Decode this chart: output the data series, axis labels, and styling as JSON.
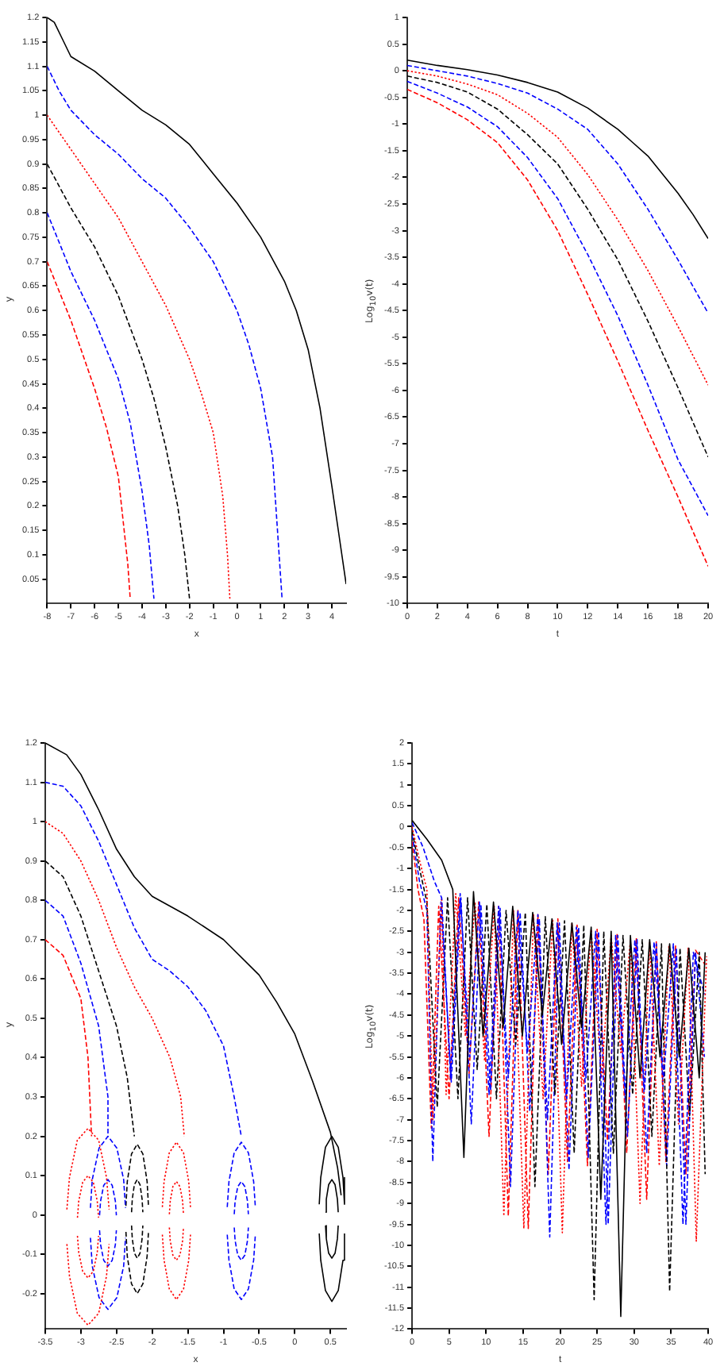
{
  "chart_data": [
    {
      "type": "line",
      "xlabel": "x",
      "ylabel": "y",
      "xlim": [
        -8,
        4.6
      ],
      "ylim": [
        0,
        1.2
      ],
      "xticks": [
        -8,
        -7,
        -6,
        -5,
        -4,
        -3,
        -2,
        -1,
        0,
        1,
        2,
        3,
        4
      ],
      "yticks": [
        0.05,
        0.1,
        0.15,
        0.2,
        0.25,
        0.3,
        0.35,
        0.4,
        0.45,
        0.5,
        0.55,
        0.6,
        0.65,
        0.7,
        0.75,
        0.8,
        0.85,
        0.9,
        0.95,
        1,
        1.05,
        1.1,
        1.15,
        1.2
      ],
      "series": [
        {
          "color": "#000000",
          "line_style": "solid",
          "x": [
            -8,
            -7.7,
            -7.3,
            -7,
            -6,
            -5,
            -4,
            -3,
            -2,
            -1,
            0,
            1,
            2,
            2.5,
            3,
            3.5,
            4,
            4.3,
            4.6
          ],
          "values": [
            1.2,
            1.19,
            1.15,
            1.12,
            1.09,
            1.05,
            1.01,
            0.98,
            0.94,
            0.88,
            0.82,
            0.75,
            0.66,
            0.6,
            0.52,
            0.4,
            0.24,
            0.14,
            0.04
          ]
        },
        {
          "color": "#0000ff",
          "line_style": "dashed",
          "x": [
            -8,
            -7.5,
            -7,
            -6,
            -5,
            -4,
            -3,
            -2,
            -1,
            0,
            0.5,
            1,
            1.5,
            1.9
          ],
          "values": [
            1.1,
            1.05,
            1.01,
            0.96,
            0.92,
            0.87,
            0.83,
            0.77,
            0.7,
            0.6,
            0.53,
            0.44,
            0.3,
            0.01
          ]
        },
        {
          "color": "#ff0000",
          "line_style": "dotted",
          "x": [
            -8,
            -7,
            -6,
            -5,
            -4,
            -3,
            -2,
            -1.5,
            -1,
            -0.6,
            -0.4,
            -0.3
          ],
          "values": [
            1,
            0.93,
            0.86,
            0.79,
            0.7,
            0.61,
            0.5,
            0.43,
            0.35,
            0.22,
            0.1,
            0.01
          ]
        },
        {
          "color": "#000000",
          "line_style": "dashed",
          "x": [
            -8,
            -7,
            -6,
            -5,
            -4,
            -3.5,
            -3,
            -2.5,
            -2.2,
            -2
          ],
          "values": [
            0.9,
            0.81,
            0.73,
            0.63,
            0.5,
            0.42,
            0.32,
            0.2,
            0.1,
            0.01
          ]
        },
        {
          "color": "#0000ff",
          "line_style": "dashed",
          "x": [
            -8,
            -7.5,
            -7,
            -6,
            -5,
            -4.5,
            -4,
            -3.7,
            -3.5
          ],
          "values": [
            0.8,
            0.74,
            0.68,
            0.58,
            0.46,
            0.37,
            0.23,
            0.12,
            0.01
          ]
        },
        {
          "color": "#ff0000",
          "line_style": "dashed",
          "x": [
            -8,
            -7.5,
            -7,
            -6,
            -5.5,
            -5,
            -4.8,
            -4.6,
            -4.5
          ],
          "values": [
            0.7,
            0.64,
            0.58,
            0.44,
            0.36,
            0.26,
            0.17,
            0.08,
            0.01
          ]
        }
      ]
    },
    {
      "type": "line",
      "xlabel": "t",
      "ylabel": "Log$_{10}$v(t)",
      "xlim": [
        0,
        20
      ],
      "ylim": [
        -10,
        1
      ],
      "xticks": [
        0,
        2,
        4,
        6,
        8,
        10,
        12,
        14,
        16,
        18,
        20
      ],
      "yticks": [
        -10,
        -9.5,
        -9,
        -8.5,
        -8,
        -7.5,
        -7,
        -6.5,
        -6,
        -5.5,
        -5,
        -4.5,
        -4,
        -3.5,
        -3,
        -2.5,
        -2,
        -1.5,
        -1,
        -0.5,
        0,
        0.5,
        1
      ],
      "series": [
        {
          "color": "#000000",
          "line_style": "solid",
          "x": [
            0,
            2,
            4,
            6,
            8,
            10,
            12,
            14,
            15,
            16,
            17,
            18,
            19,
            20
          ],
          "values": [
            0.2,
            0.1,
            0.02,
            -0.08,
            -0.22,
            -0.4,
            -0.7,
            -1.1,
            -1.35,
            -1.6,
            -1.95,
            -2.3,
            -2.7,
            -3.15
          ]
        },
        {
          "color": "#0000ff",
          "line_style": "dashed",
          "x": [
            0,
            2,
            4,
            6,
            8,
            10,
            12,
            14,
            16,
            18,
            20
          ],
          "values": [
            0.1,
            0,
            -0.1,
            -0.24,
            -0.42,
            -0.72,
            -1.1,
            -1.75,
            -2.6,
            -3.55,
            -4.55
          ]
        },
        {
          "color": "#ff0000",
          "line_style": "dotted",
          "x": [
            0,
            2,
            4,
            6,
            8,
            10,
            12,
            14,
            16,
            18,
            20
          ],
          "values": [
            0,
            -0.1,
            -0.25,
            -0.45,
            -0.8,
            -1.25,
            -1.95,
            -2.8,
            -3.75,
            -4.8,
            -5.9
          ]
        },
        {
          "color": "#000000",
          "line_style": "dashed",
          "x": [
            0,
            2,
            4,
            6,
            8,
            10,
            12,
            14,
            16,
            18,
            20
          ],
          "values": [
            -0.1,
            -0.22,
            -0.4,
            -0.72,
            -1.2,
            -1.75,
            -2.6,
            -3.55,
            -4.7,
            -5.95,
            -7.25
          ]
        },
        {
          "color": "#0000ff",
          "line_style": "dashed",
          "x": [
            0,
            2,
            4,
            6,
            8,
            10,
            12,
            14,
            16,
            18,
            20
          ],
          "values": [
            -0.2,
            -0.42,
            -0.68,
            -1.05,
            -1.63,
            -2.4,
            -3.45,
            -4.6,
            -5.9,
            -7.3,
            -8.35
          ]
        },
        {
          "color": "#ff0000",
          "line_style": "dashed",
          "x": [
            0,
            2,
            4,
            6,
            8,
            10,
            12,
            14,
            16,
            18,
            20
          ],
          "values": [
            -0.35,
            -0.6,
            -0.92,
            -1.35,
            -2.05,
            -3,
            -4.2,
            -5.45,
            -6.75,
            -8,
            -9.3
          ]
        }
      ]
    },
    {
      "type": "line",
      "xlabel": "x",
      "ylabel": "y",
      "xlim": [
        -3.5,
        0.72
      ],
      "ylim": [
        -0.29,
        1.2
      ],
      "xticks": [
        -3.5,
        -3,
        -2.5,
        -2,
        -1.5,
        -1,
        -0.5,
        0,
        0.5
      ],
      "yticks": [
        -0.2,
        -0.1,
        0,
        0.1,
        0.2,
        0.3,
        0.4,
        0.5,
        0.6,
        0.7,
        0.8,
        0.9,
        1,
        1.1,
        1.2
      ],
      "series": [
        {
          "color": "#000000",
          "line_style": "solid",
          "x": [
            -3.5,
            -3.2,
            -3,
            -2.75,
            -2.5,
            -2.25,
            -2,
            -1.5,
            -1,
            -0.5,
            -0.25,
            0,
            0.25,
            0.5,
            0.6,
            0.65
          ],
          "values": [
            1.2,
            1.17,
            1.12,
            1.03,
            0.93,
            0.86,
            0.81,
            0.76,
            0.7,
            0.61,
            0.54,
            0.46,
            0.34,
            0.21,
            0.12,
            0.05
          ]
        },
        {
          "color": "#0000ff",
          "line_style": "dashed",
          "x": [
            -3.5,
            -3.25,
            -3,
            -2.75,
            -2.5,
            -2.25,
            -2,
            -1.75,
            -1.5,
            -1.25,
            -1,
            -0.85,
            -0.75
          ],
          "values": [
            1.1,
            1.09,
            1.04,
            0.95,
            0.84,
            0.73,
            0.65,
            0.62,
            0.58,
            0.52,
            0.43,
            0.3,
            0.2
          ]
        },
        {
          "color": "#ff0000",
          "line_style": "dotted",
          "x": [
            -3.5,
            -3.25,
            -3,
            -2.75,
            -2.5,
            -2.25,
            -2,
            -1.75,
            -1.6,
            -1.55
          ],
          "values": [
            1,
            0.97,
            0.9,
            0.8,
            0.68,
            0.58,
            0.5,
            0.4,
            0.3,
            0.2
          ]
        },
        {
          "color": "#000000",
          "line_style": "dashed",
          "x": [
            -3.5,
            -3.25,
            -3,
            -2.75,
            -2.5,
            -2.35,
            -2.25
          ],
          "values": [
            0.9,
            0.86,
            0.76,
            0.62,
            0.48,
            0.35,
            0.2
          ]
        },
        {
          "color": "#0000ff",
          "line_style": "dashed",
          "x": [
            -3.5,
            -3.25,
            -3,
            -2.75,
            -2.62,
            -2.62
          ],
          "values": [
            0.8,
            0.76,
            0.64,
            0.48,
            0.3,
            0.2
          ]
        },
        {
          "color": "#ff0000",
          "line_style": "dashed",
          "x": [
            -3.5,
            -3.25,
            -3,
            -2.9,
            -2.85
          ],
          "values": [
            0.7,
            0.66,
            0.55,
            0.4,
            0.2
          ]
        },
        {
          "color": "#ff0000",
          "line_style": "dotted",
          "x": [
            -3.196,
            -3.16,
            -3.05,
            -2.9,
            -2.75,
            -2.64,
            -2.604
          ],
          "values": [
            0.014,
            0.095,
            0.19,
            0.22,
            0.19,
            0.095,
            0.014
          ]
        },
        {
          "color": "#ff0000",
          "line_style": "dotted",
          "x": [
            -3.196,
            -3.16,
            -3.05,
            -2.9,
            -2.75,
            -2.64,
            -2.604
          ],
          "values": [
            -0.074,
            -0.155,
            -0.25,
            -0.28,
            -0.25,
            -0.155,
            -0.074
          ]
        },
        {
          "color": "#ff0000",
          "line_style": "dotted",
          "x": [
            -3.048,
            -3.03,
            -2.975,
            -2.9,
            -2.825,
            -2.77,
            -2.752
          ],
          "values": [
            -0.007,
            0.035,
            0.083,
            0.1,
            0.083,
            0.035,
            -0.007
          ]
        },
        {
          "color": "#ff0000",
          "line_style": "dotted",
          "x": [
            -3.048,
            -3.03,
            -2.975,
            -2.9,
            -2.825,
            -2.77,
            -2.752
          ],
          "values": [
            -0.053,
            -0.095,
            -0.143,
            -0.16,
            -0.143,
            -0.095,
            -0.053
          ]
        },
        {
          "color": "#0000ff",
          "line_style": "dashed",
          "x": [
            -2.866,
            -2.84,
            -2.745,
            -2.62,
            -2.495,
            -2.4,
            -2.374
          ],
          "values": [
            0.018,
            0.09,
            0.17,
            0.2,
            0.17,
            0.09,
            0.018
          ]
        },
        {
          "color": "#0000ff",
          "line_style": "dashed",
          "x": [
            -2.866,
            -2.84,
            -2.745,
            -2.62,
            -2.495,
            -2.4,
            -2.374
          ],
          "values": [
            -0.058,
            -0.13,
            -0.21,
            -0.24,
            -0.21,
            -0.13,
            -0.058
          ]
        },
        {
          "color": "#0000ff",
          "line_style": "dashed",
          "x": [
            -2.738,
            -2.724,
            -2.68,
            -2.62,
            -2.56,
            -2.516,
            -2.502
          ],
          "values": [
            -0.001,
            0.035,
            0.075,
            0.09,
            0.075,
            0.035,
            -0.001
          ]
        },
        {
          "color": "#0000ff",
          "line_style": "dashed",
          "x": [
            -2.738,
            -2.724,
            -2.68,
            -2.62,
            -2.56,
            -2.516,
            -2.502
          ],
          "values": [
            -0.039,
            -0.075,
            -0.115,
            -0.13,
            -0.115,
            -0.075,
            -0.039
          ]
        },
        {
          "color": "#000000",
          "line_style": "dashed",
          "x": [
            -2.368,
            -2.349,
            -2.29,
            -2.21,
            -2.13,
            -2.071,
            -2.052
          ],
          "values": [
            0.023,
            0.085,
            0.155,
            0.18,
            0.155,
            0.085,
            0.023
          ]
        },
        {
          "color": "#000000",
          "line_style": "dashed",
          "x": [
            -2.368,
            -2.349,
            -2.29,
            -2.21,
            -2.13,
            -2.071,
            -2.052
          ],
          "values": [
            -0.043,
            -0.105,
            -0.175,
            -0.2,
            -0.175,
            -0.105,
            -0.043
          ]
        },
        {
          "color": "#000000",
          "line_style": "dashed",
          "x": [
            -2.289,
            -2.279,
            -2.25,
            -2.21,
            -2.17,
            -2.141,
            -2.131
          ],
          "values": [
            0.007,
            0.04,
            0.077,
            0.09,
            0.077,
            0.04,
            0.007
          ]
        },
        {
          "color": "#000000",
          "line_style": "dashed",
          "x": [
            -2.289,
            -2.279,
            -2.25,
            -2.21,
            -2.17,
            -2.141,
            -2.131
          ],
          "values": [
            -0.027,
            -0.06,
            -0.097,
            -0.11,
            -0.097,
            -0.06,
            -0.027
          ]
        },
        {
          "color": "#ff0000",
          "line_style": "dotted",
          "x": [
            -1.857,
            -1.833,
            -1.76,
            -1.66,
            -1.56,
            -1.487,
            -1.463
          ],
          "values": [
            0.02,
            0.085,
            0.158,
            0.185,
            0.158,
            0.085,
            0.02
          ]
        },
        {
          "color": "#ff0000",
          "line_style": "dotted",
          "x": [
            -1.857,
            -1.833,
            -1.76,
            -1.66,
            -1.56,
            -1.487,
            -1.463
          ],
          "values": [
            -0.05,
            -0.115,
            -0.188,
            -0.215,
            -0.188,
            -0.115,
            -0.05
          ]
        },
        {
          "color": "#ff0000",
          "line_style": "dotted",
          "x": [
            -1.759,
            -1.747,
            -1.71,
            -1.66,
            -1.61,
            -1.573,
            -1.561
          ],
          "values": [
            0.002,
            0.035,
            0.072,
            0.085,
            0.072,
            0.035,
            0.002
          ]
        },
        {
          "color": "#ff0000",
          "line_style": "dotted",
          "x": [
            -1.759,
            -1.747,
            -1.71,
            -1.66,
            -1.61,
            -1.573,
            -1.561
          ],
          "values": [
            -0.032,
            -0.065,
            -0.102,
            -0.115,
            -0.102,
            -0.065,
            -0.032
          ]
        },
        {
          "color": "#0000ff",
          "line_style": "dashed",
          "x": [
            -0.947,
            -0.923,
            -0.85,
            -0.75,
            -0.65,
            -0.577,
            -0.553
          ],
          "values": [
            0.02,
            0.085,
            0.158,
            0.185,
            0.158,
            0.085,
            0.02
          ]
        },
        {
          "color": "#0000ff",
          "line_style": "dashed",
          "x": [
            -0.947,
            -0.923,
            -0.85,
            -0.75,
            -0.65,
            -0.577,
            -0.553
          ],
          "values": [
            -0.05,
            -0.115,
            -0.188,
            -0.215,
            -0.188,
            -0.115,
            -0.05
          ]
        },
        {
          "color": "#0000ff",
          "line_style": "dashed",
          "x": [
            -0.849,
            -0.837,
            -0.8,
            -0.75,
            -0.7,
            -0.663,
            -0.651
          ],
          "values": [
            0.002,
            0.035,
            0.072,
            0.085,
            0.072,
            0.035,
            0.002
          ]
        },
        {
          "color": "#0000ff",
          "line_style": "dashed",
          "x": [
            -0.849,
            -0.837,
            -0.8,
            -0.75,
            -0.7,
            -0.663,
            -0.651
          ],
          "values": [
            -0.032,
            -0.065,
            -0.102,
            -0.115,
            -0.102,
            -0.065,
            -0.032
          ]
        },
        {
          "color": "#000000",
          "line_style": "solid",
          "x": [
            0.343,
            0.364,
            0.43,
            0.52,
            0.61,
            0.676,
            0.697
          ],
          "values": [
            0.027,
            0.095,
            0.172,
            0.2,
            0.172,
            0.095,
            0.027
          ]
        },
        {
          "color": "#000000",
          "line_style": "solid",
          "x": [
            0.343,
            0.364,
            0.43,
            0.52,
            0.61,
            0.676,
            0.697
          ],
          "values": [
            -0.047,
            -0.115,
            -0.192,
            -0.22,
            -0.192,
            -0.115,
            -0.047
          ]
        },
        {
          "color": "#000000",
          "line_style": "solid",
          "x": [
            0.431,
            0.442,
            0.475,
            0.52,
            0.565,
            0.598,
            0.609
          ],
          "values": [
            0.007,
            0.04,
            0.077,
            0.09,
            0.077,
            0.04,
            0.007
          ]
        },
        {
          "color": "#000000",
          "line_style": "solid",
          "x": [
            0.431,
            0.442,
            0.475,
            0.52,
            0.565,
            0.598,
            0.609
          ],
          "values": [
            -0.027,
            -0.06,
            -0.097,
            -0.11,
            -0.097,
            -0.06,
            -0.027
          ]
        }
      ]
    },
    {
      "type": "line",
      "xlabel": "t",
      "ylabel": "Log$_{10}$v(t)",
      "xlim": [
        0,
        40
      ],
      "ylim": [
        -12,
        2
      ],
      "xticks": [
        0,
        5,
        10,
        15,
        20,
        25,
        30,
        35,
        40
      ],
      "yticks": [
        -12,
        -11.5,
        -11,
        -10.5,
        -10,
        -9.5,
        -9,
        -8.5,
        -8,
        -7.5,
        -7,
        -6.5,
        -6,
        -5.5,
        -5,
        -4.5,
        -4,
        -3.5,
        -3,
        -2.5,
        -2,
        -1.5,
        -1,
        -0.5,
        0,
        0.5,
        1,
        1.5,
        2
      ],
      "series": [
        {
          "color": "#000000",
          "line_style": "solid",
          "x": [
            0,
            2,
            4,
            5.5,
            7,
            8.3,
            9.6,
            11,
            12.3,
            13.6,
            14.9,
            16.3,
            17.6,
            18.9,
            20.2,
            21.6,
            22.9,
            24.2,
            25.5,
            26.9,
            28.2,
            29.5,
            30.8,
            32.1,
            33.5,
            34.8,
            36.1,
            37.4,
            38.8,
            39.6
          ],
          "values": [
            0.15,
            -0.3,
            -0.8,
            -1.5,
            -7.9,
            -1.55,
            -5,
            -1.8,
            -4.8,
            -1.9,
            -5,
            -2.05,
            -4.5,
            -2.2,
            -5.2,
            -2.3,
            -4.8,
            -2.4,
            -8.9,
            -2.5,
            -11.7,
            -2.6,
            -6,
            -2.7,
            -5.5,
            -2.8,
            -5.5,
            -2.9,
            -6,
            -3
          ]
        },
        {
          "color": "#0000ff",
          "line_style": "dashed",
          "x": [
            0,
            1.5,
            3,
            4,
            5.2,
            6.5,
            7.8,
            9.1,
            10.4,
            11.7,
            13,
            14.3,
            15.6,
            17,
            18.3,
            19.6,
            20.9,
            22.2,
            23.5,
            24.8,
            26.2,
            27.5,
            28.8,
            30.1,
            31.4,
            32.7,
            34,
            35.3,
            36.6,
            38,
            39.5
          ],
          "values": [
            0.1,
            -0.5,
            -1.3,
            -1.7,
            -6,
            -1.6,
            -5.5,
            -1.8,
            -6.4,
            -1.9,
            -6,
            -2,
            -5.4,
            -2.1,
            -7,
            -2.3,
            -6.5,
            -2.4,
            -6,
            -2.5,
            -9.5,
            -2.6,
            -6.5,
            -2.7,
            -6.3,
            -2.75,
            -6,
            -2.8,
            -9.5,
            -3,
            -4
          ]
        },
        {
          "color": "#ff0000",
          "line_style": "dotted",
          "x": [
            0,
            1,
            2,
            2.8,
            4,
            4.6,
            5.9,
            7.2,
            8.5,
            9.8,
            11.1,
            12.4,
            13.7,
            15.1,
            16.4,
            17.7,
            19,
            20.3,
            21.6,
            22.9,
            24.2,
            25.6,
            26.9,
            28.2,
            29.5,
            30.8,
            32.1,
            33.4,
            34.7,
            36,
            37.3,
            38.4,
            39.8
          ],
          "values": [
            0,
            -0.8,
            -1.5,
            -7,
            -1.7,
            -6.4,
            -1.6,
            -5,
            -1.8,
            -5.6,
            -1.9,
            -9.3,
            -2,
            -9.6,
            -2.1,
            -6.5,
            -2.2,
            -9.7,
            -2.3,
            -6.2,
            -2.45,
            -6,
            -2.6,
            -5.4,
            -2.7,
            -9,
            -2.75,
            -8.1,
            -2.85,
            -7.1,
            -2.9,
            -9.9,
            -3.1
          ]
        },
        {
          "color": "#000000",
          "line_style": "dashed",
          "x": [
            0,
            1,
            2,
            3.4,
            4.8,
            6.2,
            7.5,
            8.8,
            10.1,
            11.4,
            12.7,
            14,
            15.3,
            16.6,
            18,
            19.3,
            20.6,
            21.9,
            23.2,
            24.6,
            25.9,
            27.2,
            28.5,
            29.8,
            31.1,
            32.4,
            33.7,
            34.8,
            36.2,
            37.5,
            38.8,
            39.6
          ],
          "values": [
            -0.1,
            -1,
            -1.8,
            -6.7,
            -1.7,
            -6.5,
            -1.7,
            -5.8,
            -1.85,
            -6.5,
            -2,
            -5.2,
            -2.05,
            -8.6,
            -2.15,
            -6.4,
            -2.25,
            -7.8,
            -2.35,
            -11.3,
            -2.5,
            -7.8,
            -2.6,
            -6.4,
            -2.7,
            -7.4,
            -2.8,
            -11.1,
            -2.9,
            -6.9,
            -3,
            -8.3
          ]
        },
        {
          "color": "#0000ff",
          "line_style": "dashed",
          "x": [
            0,
            1,
            2,
            2.8,
            3.9,
            5.3,
            6.6,
            8,
            9.3,
            10.6,
            11.9,
            13.3,
            14.6,
            15.9,
            17.2,
            18.6,
            19.9,
            21.2,
            22.5,
            23.8,
            25.2,
            26.5,
            27.8,
            29.1,
            30.4,
            31.7,
            33,
            34.4,
            35.7,
            37,
            38.3,
            39.5
          ],
          "values": [
            -0.2,
            -1.3,
            -2,
            -8,
            -1.8,
            -6.1,
            -1.7,
            -7.1,
            -1.85,
            -6.3,
            -1.95,
            -8.6,
            -2.05,
            -6.8,
            -2.2,
            -9.8,
            -2.3,
            -8.2,
            -2.4,
            -7.9,
            -2.5,
            -9.5,
            -2.6,
            -7.4,
            -2.7,
            -7.8,
            -2.8,
            -8.1,
            -2.9,
            -9.5,
            -3,
            -5.5
          ]
        },
        {
          "color": "#ff0000",
          "line_style": "dashed",
          "x": [
            0,
            0.8,
            1.6,
            2.6,
            3.6,
            5,
            6.3,
            7.7,
            9,
            10.4,
            11.7,
            13,
            14.3,
            15.7,
            17,
            18.4,
            19.7,
            21,
            22.3,
            23.7,
            25,
            26.4,
            27.7,
            29,
            30.3,
            31.7,
            33,
            34.3,
            35.6,
            37,
            38.3,
            39.6
          ],
          "values": [
            -0.35,
            -1.5,
            -2.2,
            -7.2,
            -1.9,
            -6.5,
            -1.7,
            -5.9,
            -1.8,
            -7.4,
            -1.9,
            -9.3,
            -2,
            -9.6,
            -2.1,
            -8.3,
            -2.2,
            -8,
            -2.35,
            -8.1,
            -2.45,
            -7.5,
            -2.55,
            -7.8,
            -2.65,
            -8.9,
            -2.75,
            -8,
            -2.85,
            -8.3,
            -2.95,
            -3.3
          ]
        }
      ]
    }
  ]
}
